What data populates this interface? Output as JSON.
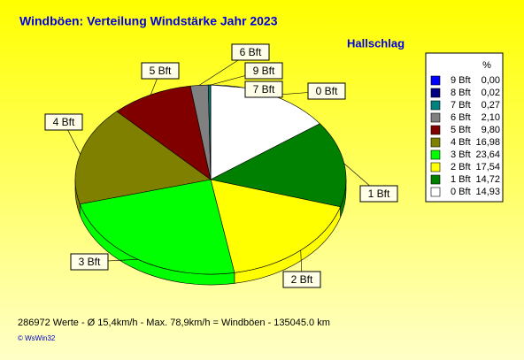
{
  "chart_data": {
    "type": "pie",
    "title": "Windböen: Verteilung Windstärke  Jahr 2023",
    "subtitle": "Hallschlag",
    "legend_title": "%",
    "categories": [
      "0 Bft",
      "1 Bft",
      "2 Bft",
      "3 Bft",
      "4 Bft",
      "5 Bft",
      "6 Bft",
      "7 Bft",
      "8 Bft",
      "9 Bft"
    ],
    "values": [
      14.93,
      14.72,
      17.54,
      23.64,
      16.98,
      9.8,
      2.1,
      0.27,
      0.02,
      0.0
    ],
    "value_labels": [
      "14,93",
      "14,72",
      "17,54",
      "23,64",
      "16,98",
      "9,80",
      "2,10",
      "0,27",
      "0,02",
      "0,00"
    ],
    "colors": [
      "#ffffff",
      "#008000",
      "#ffff00",
      "#00ff00",
      "#808000",
      "#800000",
      "#808080",
      "#008080",
      "#000080",
      "#0000ff"
    ],
    "footer": "286972 Werte   -   Ø 15,4km/h  -  Max. 78,9km/h = Windböen   -   135045.0 km",
    "copyright": "© WsWin32"
  }
}
